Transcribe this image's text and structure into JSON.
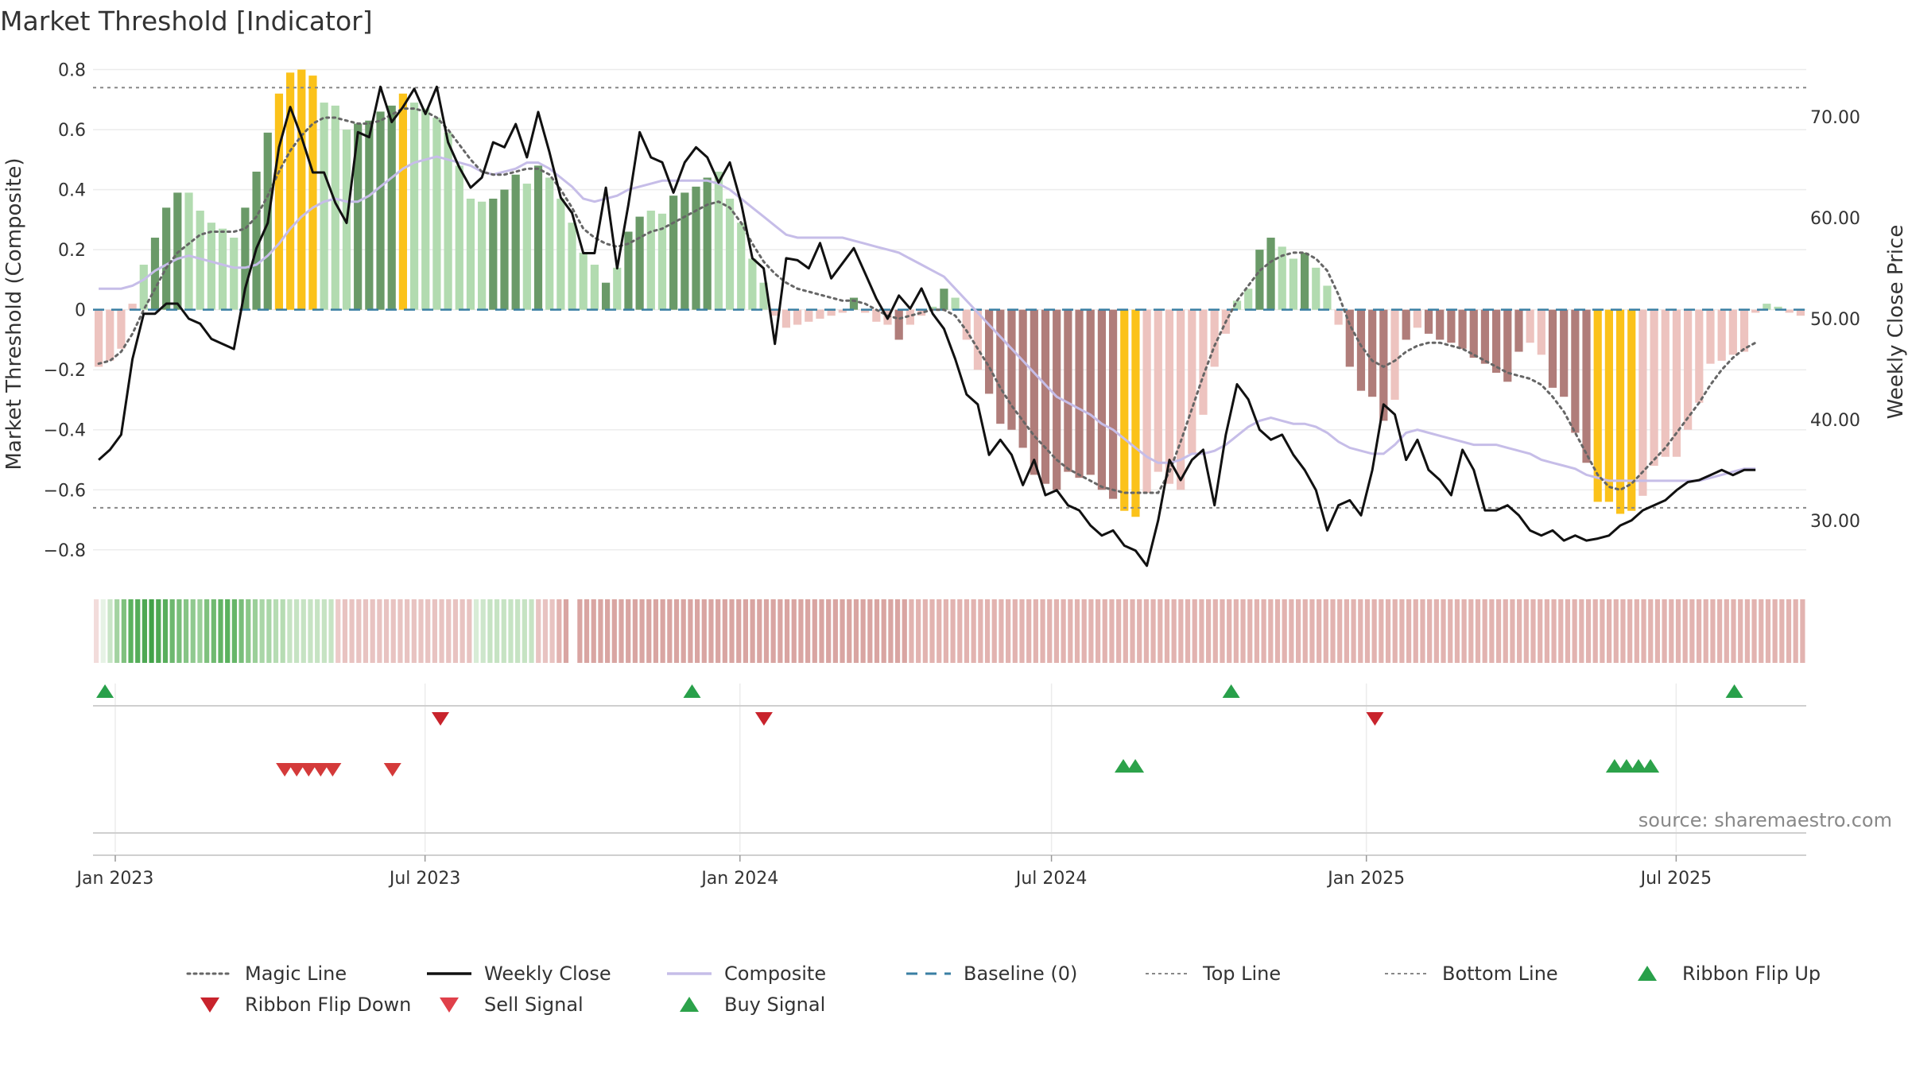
{
  "chart_data": {
    "type": "bar",
    "title": "Market Threshold [Indicator]",
    "ylabel": "Market Threshold (Composite)",
    "y2label": "Weekly Close Price",
    "source": "source: sharemaestro.com",
    "ylim": [
      -0.88,
      0.82
    ],
    "y2lim": [
      24.7,
      75.3
    ],
    "yticks": [
      0.8,
      0.6,
      0.4,
      0.2,
      0,
      -0.2,
      -0.4,
      -0.6,
      -0.8
    ],
    "ytick_labels": [
      "0.8",
      "0.6",
      "0.4",
      "0.2",
      "0",
      "−0.2",
      "−0.4",
      "−0.6",
      "−0.8"
    ],
    "y2ticks": [
      70,
      60,
      50,
      40,
      30
    ],
    "y2tick_labels": [
      "70.00",
      "60.00",
      "50.00",
      "40.00",
      "30.00"
    ],
    "x_start": "2022-12-19",
    "x_end": "2025-09-15",
    "xticks": [
      {
        "date": "2023-01-01",
        "label": "Jan 2023"
      },
      {
        "date": "2023-07-01",
        "label": "Jul 2023"
      },
      {
        "date": "2024-01-01",
        "label": "Jan 2024"
      },
      {
        "date": "2024-07-01",
        "label": "Jul 2024"
      },
      {
        "date": "2025-01-01",
        "label": "Jan 2025"
      },
      {
        "date": "2025-07-01",
        "label": "Jul 2025"
      }
    ],
    "top_line": 0.74,
    "bottom_line": -0.66,
    "baseline": 0,
    "colors": {
      "dark_green": "#6a9a68",
      "light_green": "#b2dbb0",
      "dark_red": "#b07d7a",
      "light_red": "#edc3bf",
      "extreme": "#fbc21a",
      "weekly_close": "#111111",
      "composite": "#c6bde8",
      "magic_line": "#666666",
      "baseline": "#3a7fa3",
      "threshold_lines": "#888888",
      "buy": "#2ca24a",
      "sell": "#d43a3a",
      "flip_up": "#28a04a",
      "flip_down": "#c8232c"
    },
    "bars": [
      -0.19,
      -0.17,
      -0.13,
      0.02,
      0.15,
      0.24,
      0.34,
      0.39,
      0.39,
      0.33,
      0.29,
      0.27,
      0.24,
      0.34,
      0.46,
      0.59,
      0.72,
      0.79,
      0.8,
      0.78,
      0.69,
      0.68,
      0.6,
      0.62,
      0.63,
      0.66,
      0.68,
      0.72,
      0.69,
      0.67,
      0.64,
      0.59,
      0.48,
      0.37,
      0.36,
      0.37,
      0.4,
      0.45,
      0.42,
      0.48,
      0.44,
      0.37,
      0.29,
      0.19,
      0.15,
      0.09,
      0.14,
      0.26,
      0.31,
      0.33,
      0.32,
      0.38,
      0.39,
      0.41,
      0.44,
      0.46,
      0.37,
      0.29,
      0.17,
      0.09,
      -0.02,
      -0.06,
      -0.05,
      -0.04,
      -0.03,
      -0.02,
      -0.01,
      0.04,
      -0.01,
      -0.04,
      -0.05,
      -0.1,
      -0.05,
      -0.02,
      0.01,
      0.07,
      0.04,
      -0.1,
      -0.2,
      -0.28,
      -0.38,
      -0.4,
      -0.46,
      -0.55,
      -0.58,
      -0.6,
      -0.54,
      -0.56,
      -0.55,
      -0.6,
      -0.63,
      -0.67,
      -0.69,
      -0.61,
      -0.54,
      -0.58,
      -0.6,
      -0.48,
      -0.35,
      -0.19,
      -0.08,
      0.03,
      0.07,
      0.2,
      0.24,
      0.21,
      0.17,
      0.19,
      0.14,
      0.08,
      -0.05,
      -0.19,
      -0.27,
      -0.29,
      -0.37,
      -0.3,
      -0.1,
      -0.06,
      -0.08,
      -0.1,
      -0.11,
      -0.13,
      -0.16,
      -0.18,
      -0.21,
      -0.24,
      -0.14,
      -0.11,
      -0.15,
      -0.26,
      -0.29,
      -0.41,
      -0.51,
      -0.64,
      -0.64,
      -0.68,
      -0.67,
      -0.62,
      -0.52,
      -0.49,
      -0.49,
      -0.4,
      -0.31,
      -0.18,
      -0.17,
      -0.15,
      -0.14,
      -0.01,
      0.02,
      0.01,
      -0.01,
      -0.02
    ],
    "bar_styles": [
      "lr",
      "lr",
      "lr",
      "lr",
      "lg",
      "dg",
      "dg",
      "dg",
      "lg",
      "lg",
      "lg",
      "lg",
      "lg",
      "dg",
      "dg",
      "dg",
      "ex",
      "ex",
      "ex",
      "ex",
      "lg",
      "lg",
      "lg",
      "dg",
      "dg",
      "dg",
      "dg",
      "ex",
      "lg",
      "lg",
      "lg",
      "lg",
      "lg",
      "lg",
      "lg",
      "dg",
      "dg",
      "dg",
      "lg",
      "dg",
      "lg",
      "lg",
      "lg",
      "lg",
      "lg",
      "dg",
      "lg",
      "dg",
      "dg",
      "lg",
      "lg",
      "dg",
      "dg",
      "dg",
      "dg",
      "lg",
      "lg",
      "lg",
      "lg",
      "lg",
      "lr",
      "lr",
      "lr",
      "lr",
      "lr",
      "lr",
      "lr",
      "dg",
      "lr",
      "lr",
      "lr",
      "dr",
      "lr",
      "lr",
      "lg",
      "dg",
      "lg",
      "lr",
      "lr",
      "dr",
      "dr",
      "dr",
      "dr",
      "dr",
      "dr",
      "dr",
      "dr",
      "dr",
      "dr",
      "dr",
      "dr",
      "ex",
      "ex",
      "lr",
      "lr",
      "lr",
      "lr",
      "lr",
      "lr",
      "lr",
      "lr",
      "lg",
      "lg",
      "dg",
      "dg",
      "lg",
      "lg",
      "dg",
      "lg",
      "lg",
      "lr",
      "dr",
      "dr",
      "dr",
      "dr",
      "lr",
      "dr",
      "lr",
      "dr",
      "dr",
      "dr",
      "dr",
      "dr",
      "dr",
      "dr",
      "dr",
      "dr",
      "lr",
      "lr",
      "dr",
      "dr",
      "dr",
      "dr",
      "ex",
      "ex",
      "ex",
      "ex",
      "lr",
      "lr",
      "lr",
      "lr",
      "lr",
      "lr",
      "lr",
      "lr",
      "lr",
      "lr",
      "lr",
      "lg",
      "lg",
      "lr",
      "lr"
    ],
    "weekly_close": [
      36,
      37,
      38.5,
      46,
      50.5,
      50.5,
      51.5,
      51.5,
      50,
      49.5,
      48,
      47.5,
      47,
      53,
      57,
      59.5,
      67,
      71,
      68,
      64.5,
      64.5,
      61.5,
      59.5,
      68.5,
      68,
      73,
      69.5,
      71,
      72.8,
      70.3,
      73,
      67.5,
      65,
      63,
      64,
      67.5,
      67,
      69.3,
      66,
      70.5,
      66.5,
      62,
      60.5,
      56.5,
      56.5,
      63,
      55,
      61.3,
      68.5,
      66,
      65.5,
      62.5,
      65.5,
      67,
      66,
      63.5,
      65.5,
      61.5,
      56,
      55,
      47.5,
      56,
      55.8,
      55,
      57.5,
      54,
      55.5,
      57,
      54.5,
      52,
      50,
      52.3,
      51,
      53,
      50.5,
      49,
      46,
      42.5,
      41.5,
      36.5,
      38,
      36.5,
      33.5,
      36,
      32.5,
      33,
      31.5,
      31,
      29.5,
      28.5,
      29,
      27.5,
      27,
      25.5,
      30,
      36,
      34,
      36,
      37,
      31.5,
      38.5,
      43.5,
      42,
      39,
      38,
      38.5,
      36.5,
      35,
      33,
      29,
      31.5,
      32,
      30.5,
      35,
      41.5,
      40.5,
      36,
      38,
      35,
      34,
      32.5,
      37,
      35,
      31,
      31,
      31.5,
      30.5,
      29,
      28.5,
      29,
      28,
      28.5,
      28,
      28.2,
      28.5,
      29.5,
      30,
      31,
      31.5,
      32,
      33,
      33.8,
      34,
      34.5,
      35,
      34.5,
      35,
      35
    ],
    "composite": [
      0.07,
      0.07,
      0.07,
      0.08,
      0.1,
      0.13,
      0.15,
      0.17,
      0.18,
      0.17,
      0.16,
      0.15,
      0.14,
      0.14,
      0.15,
      0.18,
      0.22,
      0.27,
      0.31,
      0.34,
      0.36,
      0.37,
      0.36,
      0.36,
      0.38,
      0.41,
      0.44,
      0.47,
      0.49,
      0.5,
      0.51,
      0.5,
      0.49,
      0.48,
      0.46,
      0.45,
      0.46,
      0.47,
      0.49,
      0.49,
      0.47,
      0.44,
      0.41,
      0.37,
      0.36,
      0.37,
      0.38,
      0.4,
      0.41,
      0.42,
      0.43,
      0.43,
      0.43,
      0.43,
      0.43,
      0.42,
      0.4,
      0.37,
      0.34,
      0.31,
      0.28,
      0.25,
      0.24,
      0.24,
      0.24,
      0.24,
      0.24,
      0.23,
      0.22,
      0.21,
      0.2,
      0.19,
      0.17,
      0.15,
      0.13,
      0.11,
      0.07,
      0.03,
      -0.01,
      -0.05,
      -0.09,
      -0.13,
      -0.17,
      -0.21,
      -0.25,
      -0.29,
      -0.31,
      -0.33,
      -0.35,
      -0.38,
      -0.4,
      -0.43,
      -0.46,
      -0.49,
      -0.51,
      -0.51,
      -0.5,
      -0.48,
      -0.48,
      -0.47,
      -0.45,
      -0.42,
      -0.39,
      -0.37,
      -0.36,
      -0.37,
      -0.38,
      -0.38,
      -0.39,
      -0.41,
      -0.44,
      -0.46,
      -0.47,
      -0.48,
      -0.48,
      -0.45,
      -0.41,
      -0.4,
      -0.41,
      -0.42,
      -0.43,
      -0.44,
      -0.45,
      -0.45,
      -0.45,
      -0.46,
      -0.47,
      -0.48,
      -0.5,
      -0.51,
      -0.52,
      -0.53,
      -0.55,
      -0.56,
      -0.57,
      -0.57,
      -0.57,
      -0.57,
      -0.57,
      -0.57,
      -0.57,
      -0.57,
      -0.57,
      -0.56,
      -0.55,
      -0.54,
      -0.53,
      -0.53
    ],
    "magic_line": [
      -0.18,
      -0.17,
      -0.14,
      -0.08,
      0,
      0.07,
      0.14,
      0.19,
      0.22,
      0.25,
      0.26,
      0.26,
      0.26,
      0.27,
      0.31,
      0.38,
      0.46,
      0.53,
      0.58,
      0.62,
      0.64,
      0.64,
      0.63,
      0.62,
      0.62,
      0.63,
      0.65,
      0.67,
      0.67,
      0.66,
      0.64,
      0.6,
      0.55,
      0.5,
      0.46,
      0.45,
      0.45,
      0.46,
      0.47,
      0.47,
      0.45,
      0.4,
      0.34,
      0.27,
      0.24,
      0.22,
      0.21,
      0.22,
      0.24,
      0.26,
      0.27,
      0.29,
      0.31,
      0.33,
      0.35,
      0.36,
      0.34,
      0.29,
      0.22,
      0.16,
      0.12,
      0.09,
      0.07,
      0.06,
      0.05,
      0.04,
      0.03,
      0.03,
      0.02,
      0,
      -0.02,
      -0.03,
      -0.02,
      -0.01,
      0,
      0,
      -0.02,
      -0.07,
      -0.13,
      -0.19,
      -0.26,
      -0.32,
      -0.37,
      -0.42,
      -0.46,
      -0.5,
      -0.53,
      -0.55,
      -0.57,
      -0.59,
      -0.6,
      -0.61,
      -0.61,
      -0.61,
      -0.61,
      -0.54,
      -0.44,
      -0.33,
      -0.22,
      -0.12,
      -0.04,
      0.03,
      0.08,
      0.13,
      0.16,
      0.18,
      0.19,
      0.19,
      0.17,
      0.13,
      0.05,
      -0.05,
      -0.12,
      -0.17,
      -0.19,
      -0.17,
      -0.14,
      -0.12,
      -0.11,
      -0.11,
      -0.12,
      -0.13,
      -0.15,
      -0.17,
      -0.19,
      -0.21,
      -0.22,
      -0.23,
      -0.25,
      -0.29,
      -0.34,
      -0.41,
      -0.48,
      -0.55,
      -0.59,
      -0.6,
      -0.58,
      -0.54,
      -0.5,
      -0.46,
      -0.41,
      -0.36,
      -0.31,
      -0.25,
      -0.2,
      -0.16,
      -0.13,
      -0.11
    ],
    "ribbon_colors": [
      "#f2dcdb",
      "#e6f2e5",
      "#c9e5c7",
      "#a3d3a1",
      "#7fc17e",
      "#5bb25f",
      "#55ad5a",
      "#4fa854",
      "#42a249",
      "#4fa854",
      "#58ae5c",
      "#6db86f",
      "#79be7a",
      "#86c586",
      "#90c98f",
      "#9bcf99",
      "#7fc17e",
      "#70ba71",
      "#62b465",
      "#5bb25f",
      "#66b668",
      "#79be7a",
      "#8ac788",
      "#9bcf99",
      "#a9d6a7",
      "#a9d6a7",
      "#b6dcb3",
      "#b6dcb3",
      "#c6e3c3",
      "#c6e3c3",
      "#c6e3c3",
      "#c6e3c3",
      "#c6e3c3",
      "#c6e3c3",
      "#c6e3c3",
      "#eccac8",
      "#e8c3c1",
      "#e8c3c1",
      "#e8c3c1",
      "#e8c3c1",
      "#e8c3c1",
      "#e8c3c1",
      "#e8c3c1",
      "#e8c3c1",
      "#e8c3c1",
      "#e8c3c1",
      "#e8c3c1",
      "#e8c3c1",
      "#e8c3c1",
      "#e8c3c1",
      "#e8c3c1",
      "#e8c3c1",
      "#e8c3c1",
      "#e8c3c1",
      "#e8c3c1",
      "#d8ecd6",
      "#cde6cb",
      "#c6e3c3",
      "#c6e3c3",
      "#c6e3c3",
      "#c6e3c3",
      "#c6e3c3",
      "#c6e3c3",
      "#c6e3c3",
      "#e8c3c1",
      "#e8c3c1",
      "#e8c3c1",
      "#e2b3b0",
      "#d9a5a2",
      "#ffffff",
      "#d9a5a2",
      "#d9a5a2",
      "#d9a5a2",
      "#d9a5a2",
      "#d9a5a2",
      "#d9a5a2",
      "#d9a5a2",
      "#d9a5a2",
      "#d9a5a2",
      "#d9a5a2",
      "#d9a5a2",
      "#d9a5a2",
      "#d9a5a2",
      "#d9a5a2",
      "#d9a5a2",
      "#d9a5a2",
      "#d9a5a2",
      "#d9a5a2",
      "#d9a5a2",
      "#d9a5a2",
      "#d9a5a2",
      "#d9a5a2",
      "#d9a5a2",
      "#d9a5a2",
      "#d9a5a2",
      "#d9a5a2",
      "#d9a5a2",
      "#d9a5a2",
      "#d9a5a2",
      "#d9a5a2",
      "#d9a5a2",
      "#d9a5a2",
      "#d9a5a2",
      "#d9a5a2",
      "#d9a5a2",
      "#d9a5a2",
      "#d9a5a2",
      "#d9a5a2",
      "#d9a5a2",
      "#d9a5a2",
      "#d9a5a2",
      "#d9a5a2",
      "#d9a5a2",
      "#d9a5a2",
      "#d9a5a2",
      "#d9a5a2",
      "#d9a5a2",
      "#d9a5a2",
      "#e2b3b0",
      "#e2b3b0",
      "#e2b3b0",
      "#e2b3b0",
      "#e2b3b0",
      "#e2b3b0",
      "#e2b3b0",
      "#e2b3b0",
      "#e2b3b0",
      "#e2b3b0",
      "#e2b3b0",
      "#e2b3b0",
      "#e2b3b0",
      "#e2b3b0",
      "#e2b3b0",
      "#e2b3b0",
      "#e2b3b0",
      "#e2b3b0",
      "#e2b3b0",
      "#e2b3b0",
      "#e2b3b0",
      "#e2b3b0",
      "#e2b3b0",
      "#e2b3b0",
      "#e2b3b0",
      "#e2b3b0",
      "#e2b3b0",
      "#e2b3b0",
      "#e2b3b0",
      "#e2b3b0",
      "#e2b3b0",
      "#e2b3b0",
      "#e2b3b0",
      "#e2b3b0",
      "#e2b3b0",
      "#e2b3b0",
      "#e2b3b0",
      "#e2b3b0",
      "#e2b3b0",
      "#e2b3b0",
      "#e2b3b0",
      "#e2b3b0",
      "#e2b3b0",
      "#e2b3b0",
      "#e2b3b0",
      "#e2b3b0",
      "#e2b3b0",
      "#e2b3b0",
      "#e2b3b0",
      "#e2b3b0",
      "#e2b3b0",
      "#e2b3b0",
      "#e2b3b0",
      "#e2b3b0",
      "#e2b3b0",
      "#e2b3b0",
      "#e2b3b0",
      "#e2b3b0",
      "#e2b3b0",
      "#e2b3b0",
      "#e2b3b0",
      "#e2b3b0",
      "#e2b3b0",
      "#e2b3b0",
      "#e2b3b0",
      "#e2b3b0",
      "#e2b3b0",
      "#e2b3b0",
      "#e2b3b0",
      "#e2b3b0",
      "#e2b3b0",
      "#e2b3b0",
      "#e2b3b0",
      "#e2b3b0",
      "#e2b3b0",
      "#e2b3b0",
      "#e2b3b0",
      "#e2b3b0",
      "#e2b3b0",
      "#e2b3b0",
      "#e2b3b0",
      "#e2b3b0",
      "#e2b3b0",
      "#e2b3b0",
      "#e2b3b0",
      "#e2b3b0",
      "#e2b3b0",
      "#e2b3b0",
      "#e2b3b0",
      "#e2b3b0",
      "#e2b3b0",
      "#e2b3b0",
      "#e2b3b0",
      "#e2b3b0",
      "#e2b3b0",
      "#e2b3b0",
      "#e2b3b0",
      "#e2b3b0",
      "#e2b3b0",
      "#e2b3b0",
      "#e2b3b0",
      "#e2b3b0",
      "#e2b3b0",
      "#e2b3b0",
      "#e2b3b0",
      "#e2b3b0",
      "#e2b3b0",
      "#e2b3b0",
      "#e2b3b0",
      "#e2b3b0",
      "#e2b3b0",
      "#e2b3b0",
      "#e2b3b0",
      "#e2b3b0",
      "#e2b3b0",
      "#e2b3b0",
      "#e2b3b0",
      "#e2b3b0",
      "#e2b3b0",
      "#e2b3b0",
      "#e2b3b0",
      "#e2b3b0",
      "#e2b3b0",
      "#e2b3b0",
      "#e2b3b0",
      "#e2b3b0",
      "#e2b3b0",
      "#e2b3b0",
      "#e2b3b0",
      "#e2b3b0"
    ],
    "ribbon_flip_up": [
      "2022-12-26",
      "2023-12-04",
      "2024-10-14",
      "2025-08-04"
    ],
    "ribbon_flip_down": [
      "2023-07-10",
      "2024-01-15",
      "2025-01-06"
    ],
    "sell_signals": [
      "2023-04-10",
      "2023-04-17",
      "2023-04-24",
      "2023-05-01",
      "2023-05-08",
      "2023-06-12"
    ],
    "buy_signals": [
      "2024-08-12",
      "2024-08-19",
      "2025-05-26",
      "2025-06-02",
      "2025-06-09",
      "2025-06-16"
    ],
    "legend": [
      {
        "label": "Magic Line",
        "kind": "dotted",
        "color": "#666666"
      },
      {
        "label": "Weekly Close",
        "kind": "solid",
        "color": "#111111"
      },
      {
        "label": "Composite",
        "kind": "solid",
        "color": "#c6bde8"
      },
      {
        "label": "Baseline (0)",
        "kind": "dashed",
        "color": "#3a7fa3"
      },
      {
        "label": "Top Line",
        "kind": "dotted-thin",
        "color": "#888888"
      },
      {
        "label": "Bottom Line",
        "kind": "dotted-thin",
        "color": "#888888"
      },
      {
        "label": "Ribbon Flip Up",
        "kind": "tri-up",
        "color": "#28a04a"
      },
      {
        "label": "Ribbon Flip Down",
        "kind": "tri-down",
        "color": "#c8232c"
      },
      {
        "label": "Sell Signal",
        "kind": "tri-down",
        "color": "#e0404a"
      },
      {
        "label": "Buy Signal",
        "kind": "tri-up",
        "color": "#2ca24a"
      }
    ]
  }
}
